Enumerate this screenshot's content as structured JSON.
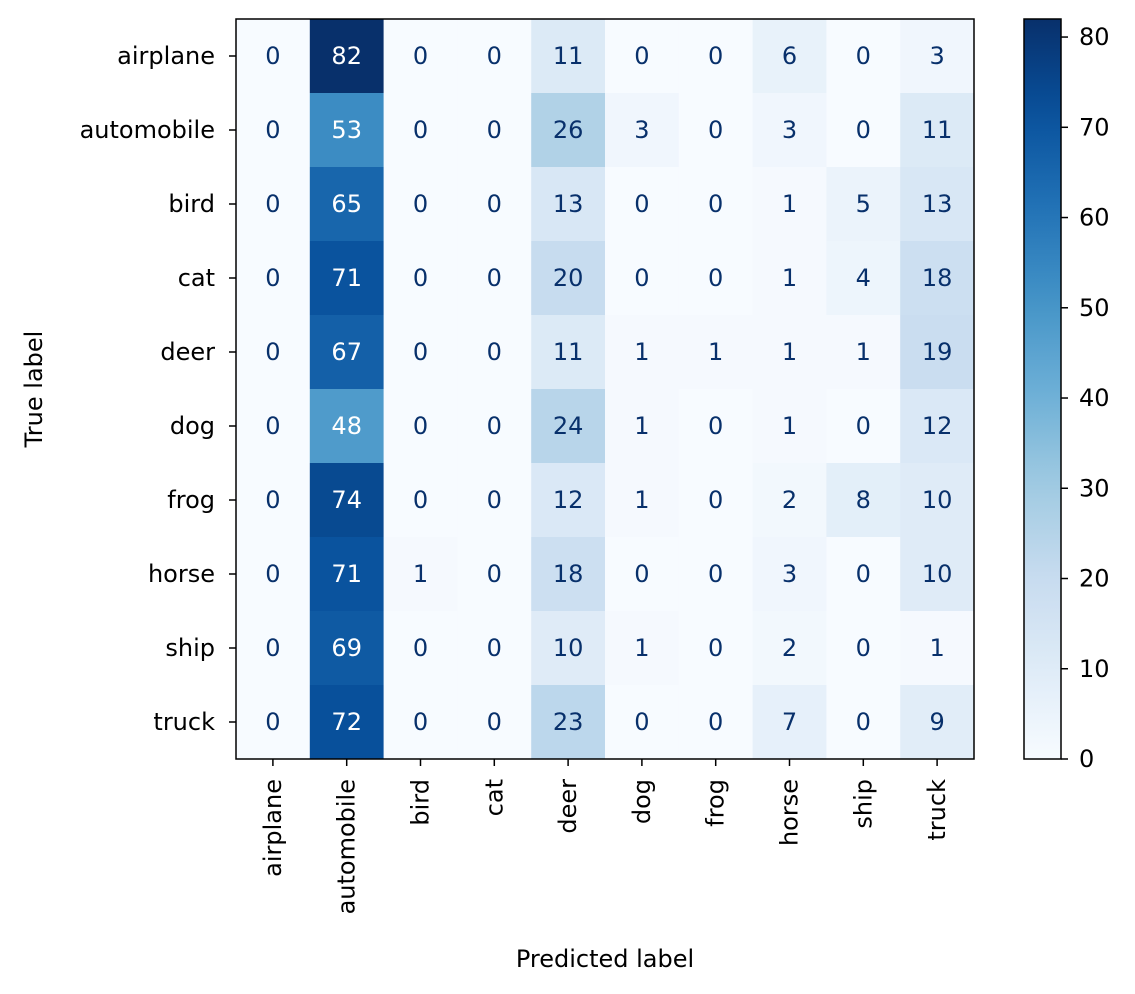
{
  "chart_data": {
    "type": "heatmap",
    "xlabel": "Predicted label",
    "ylabel": "True label",
    "x_categories": [
      "airplane",
      "automobile",
      "bird",
      "cat",
      "deer",
      "dog",
      "frog",
      "horse",
      "ship",
      "truck"
    ],
    "y_categories": [
      "airplane",
      "automobile",
      "bird",
      "cat",
      "deer",
      "dog",
      "frog",
      "horse",
      "ship",
      "truck"
    ],
    "values": [
      [
        0,
        82,
        0,
        0,
        11,
        0,
        0,
        6,
        0,
        3
      ],
      [
        0,
        53,
        0,
        0,
        26,
        3,
        0,
        3,
        0,
        11
      ],
      [
        0,
        65,
        0,
        0,
        13,
        0,
        0,
        1,
        5,
        13
      ],
      [
        0,
        71,
        0,
        0,
        20,
        0,
        0,
        1,
        4,
        18
      ],
      [
        0,
        67,
        0,
        0,
        11,
        1,
        1,
        1,
        1,
        19
      ],
      [
        0,
        48,
        0,
        0,
        24,
        1,
        0,
        1,
        0,
        12
      ],
      [
        0,
        74,
        0,
        0,
        12,
        1,
        0,
        2,
        8,
        10
      ],
      [
        0,
        71,
        1,
        0,
        18,
        0,
        0,
        3,
        0,
        10
      ],
      [
        0,
        69,
        0,
        0,
        10,
        1,
        0,
        2,
        0,
        1
      ],
      [
        0,
        72,
        0,
        0,
        23,
        0,
        0,
        7,
        0,
        9
      ]
    ],
    "colormap": "Blues",
    "color_low": "#f7fbff",
    "color_high": "#08306b",
    "text_dark": "#08306b",
    "text_light": "#ffffff",
    "colorbar": {
      "range": [
        0,
        82
      ],
      "ticks": [
        0,
        10,
        20,
        30,
        40,
        50,
        60,
        70,
        80
      ]
    }
  }
}
